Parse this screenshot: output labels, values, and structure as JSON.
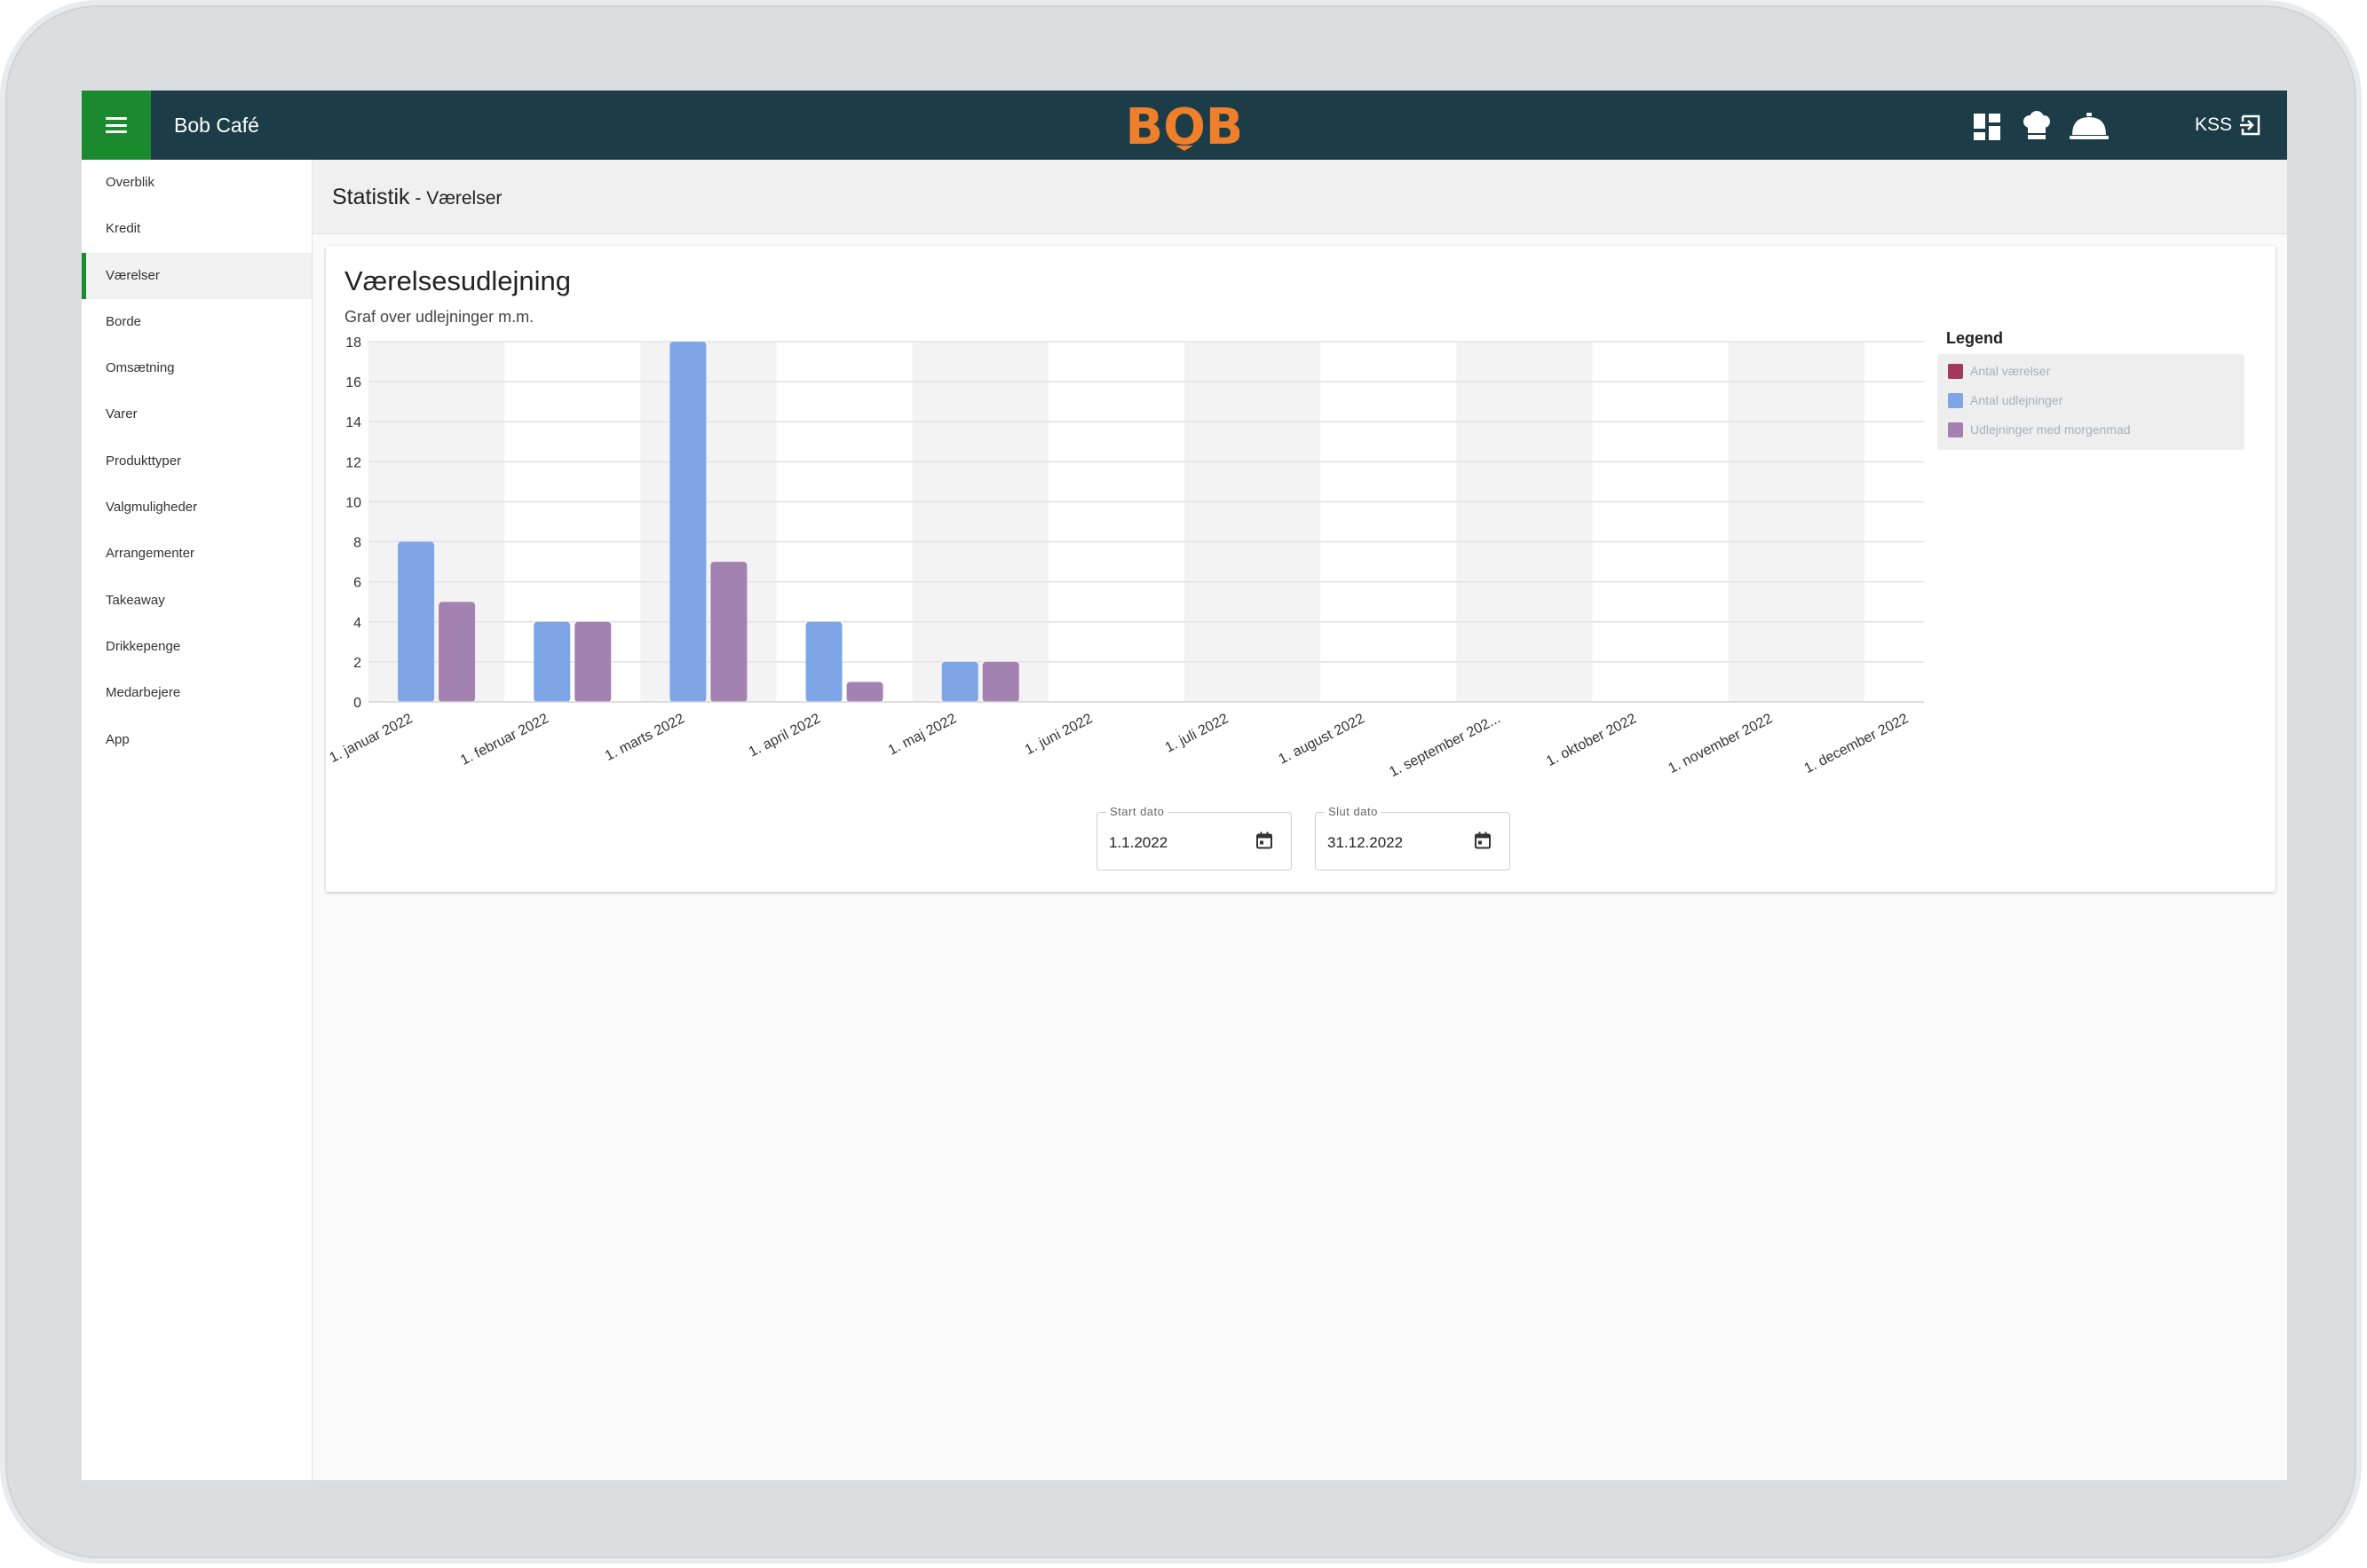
{
  "app": {
    "title": "Bob Café",
    "logo_text": "BOB",
    "user": "KSS",
    "colors": {
      "topbar": "#1c3d47",
      "menu_button": "#1b8a2e",
      "logo": "#f07f2c"
    }
  },
  "top_icons": [
    "dashboard-icon",
    "chef-hat-icon",
    "service-bell-icon"
  ],
  "sidebar": {
    "items": [
      {
        "label": "Overblik"
      },
      {
        "label": "Kredit"
      },
      {
        "label": "Værelser",
        "active": true
      },
      {
        "label": "Borde"
      },
      {
        "label": "Omsætning"
      },
      {
        "label": "Varer"
      },
      {
        "label": "Produkttyper"
      },
      {
        "label": "Valgmuligheder"
      },
      {
        "label": "Arrangementer"
      },
      {
        "label": "Takeaway"
      },
      {
        "label": "Drikkepenge"
      },
      {
        "label": "Medarbejere"
      },
      {
        "label": "App"
      }
    ]
  },
  "page": {
    "title": "Statistik",
    "subtitle": " - Værelser"
  },
  "card": {
    "title": "Værelsesudlejning",
    "subtitle": "Graf over udlejninger m.m."
  },
  "legend": {
    "title": "Legend",
    "items": [
      {
        "label": "Antal værelser",
        "color": "#a23a5d"
      },
      {
        "label": "Antal udlejninger",
        "color": "#7ea6e6"
      },
      {
        "label": "Udlejninger med morgenmad",
        "color": "#a381b0"
      }
    ]
  },
  "date_range": {
    "start_label": "Start dato",
    "start_value": "1.1.2022",
    "end_label": "Slut dato",
    "end_value": "31.12.2022"
  },
  "chart_data": {
    "type": "bar",
    "categories": [
      "1. januar 2022",
      "1. februar 2022",
      "1. marts 2022",
      "1. april 2022",
      "1. maj 2022",
      "1. juni 2022",
      "1. juli 2022",
      "1. august 2022",
      "1. september 202...",
      "1. oktober 2022",
      "1. november 2022",
      "1. december 2022"
    ],
    "series": [
      {
        "name": "Antal værelser",
        "color": "#a23a5d",
        "values": [
          0,
          0,
          0,
          0,
          0,
          0,
          0,
          0,
          0,
          0,
          0,
          0
        ]
      },
      {
        "name": "Antal udlejninger",
        "color": "#7ea6e6",
        "values": [
          8,
          4,
          18,
          4,
          2,
          0,
          0,
          0,
          0,
          0,
          0,
          0
        ]
      },
      {
        "name": "Udlejninger med morgenmad",
        "color": "#a381b0",
        "values": [
          5,
          4,
          7,
          1,
          2,
          0,
          0,
          0,
          0,
          0,
          0,
          0
        ]
      }
    ],
    "ylim": [
      0,
      18
    ],
    "yticks": [
      0,
      2,
      4,
      6,
      8,
      10,
      12,
      14,
      16,
      18
    ],
    "grid": true,
    "legend_position": "right"
  }
}
